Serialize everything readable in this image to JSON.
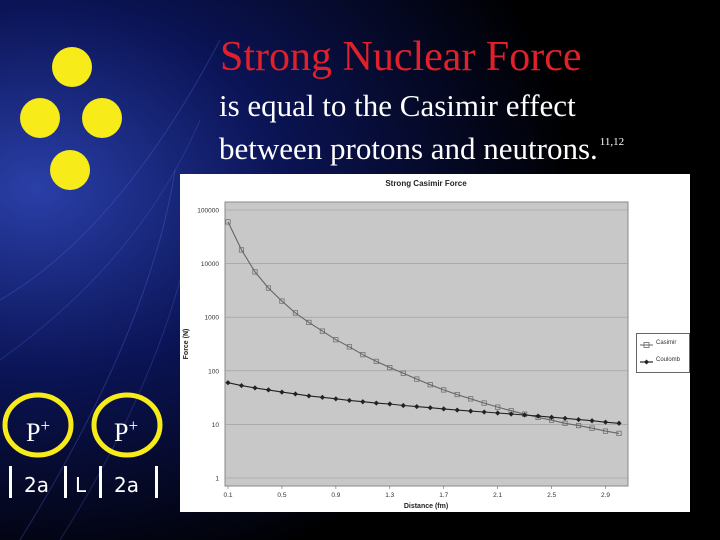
{
  "slide": {
    "title": "Strong Nuclear Force",
    "subtitle_line1": "is equal to the Casimir effect",
    "subtitle_line2": "between protons and neutrons.",
    "footnote": "11,12",
    "title_color": "#e0202a",
    "atom_color": "#f7ec1a"
  },
  "diagram": {
    "proton_left": "P",
    "proton_right": "P",
    "charge": "+",
    "gap_left": "2a",
    "gap_middle": "L",
    "gap_right": "2a"
  },
  "chart_data": {
    "type": "line",
    "title": "Strong Casimir Force",
    "xlabel": "Distance (fm)",
    "ylabel": "Force (N)",
    "yscale": "log",
    "ylim": [
      1,
      100000
    ],
    "xlim": [
      0.1,
      3.0
    ],
    "grid": true,
    "legend_position": "right",
    "x_tick_labels": [
      "0.1",
      "0.5",
      "0.9",
      "1.3",
      "1.7",
      "2.1",
      "2.5",
      "2.9"
    ],
    "y_tick_labels": [
      "100000",
      "10000",
      "1000",
      "100",
      "10",
      "1"
    ],
    "series": [
      {
        "name": "Casimir",
        "marker": "square",
        "color": "#666666",
        "x": [
          0.1,
          0.2,
          0.3,
          0.4,
          0.5,
          0.6,
          0.7,
          0.8,
          0.9,
          1.0,
          1.1,
          1.2,
          1.3,
          1.4,
          1.5,
          1.6,
          1.7,
          1.8,
          1.9,
          2.0,
          2.1,
          2.2,
          2.3,
          2.4,
          2.5,
          2.6,
          2.7,
          2.8,
          2.9,
          3.0
        ],
        "values": [
          60000,
          18000,
          7000,
          3500,
          2000,
          1200,
          800,
          550,
          380,
          280,
          200,
          150,
          115,
          90,
          70,
          55,
          44,
          36,
          30,
          25,
          21,
          18,
          15.5,
          13.5,
          12,
          10.5,
          9.5,
          8.5,
          7.5,
          6.8
        ]
      },
      {
        "name": "Coulomb",
        "marker": "diamond",
        "color": "#222222",
        "x": [
          0.1,
          0.2,
          0.3,
          0.4,
          0.5,
          0.6,
          0.7,
          0.8,
          0.9,
          1.0,
          1.1,
          1.2,
          1.3,
          1.4,
          1.5,
          1.6,
          1.7,
          1.8,
          1.9,
          2.0,
          2.1,
          2.2,
          2.3,
          2.4,
          2.5,
          2.6,
          2.7,
          2.8,
          2.9,
          3.0
        ],
        "values": [
          60,
          53,
          48,
          44,
          40,
          37,
          34,
          32,
          30,
          28,
          26.5,
          25,
          24,
          22.5,
          21.5,
          20.5,
          19.5,
          18.5,
          17.7,
          17,
          16.3,
          15.6,
          15,
          14.3,
          13.6,
          13,
          12.3,
          11.7,
          11,
          10.5
        ]
      }
    ]
  }
}
